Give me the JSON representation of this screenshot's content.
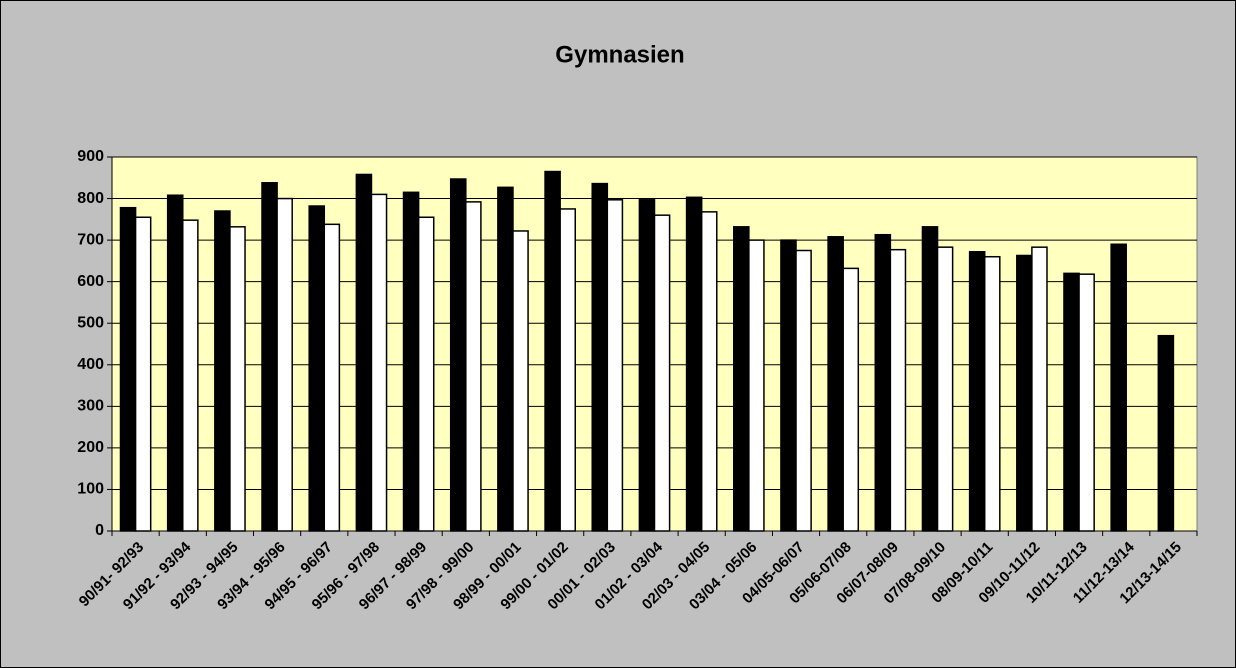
{
  "chart_data": {
    "type": "bar",
    "title": "Gymnasien",
    "categories": [
      "90/91- 92/93",
      "91/92 - 93/94",
      "92/93 - 94/95",
      "93/94 - 95/96",
      "94/95 - 96/97",
      "95/96 - 97/98",
      "96/97 - 98/99",
      "97/98 - 99/00",
      "98/99 - 00/01",
      "99/00 - 01/02",
      "00/01 - 02/03",
      "01/02 - 03/04",
      "02/03 - 04/05",
      "03/04 - 05/06",
      "04/05-06/07",
      "05/06-07/08",
      "06/07-08/09",
      "07/08-09/10",
      "08/09-10/11",
      "09/10-11/12",
      "10/11-12/13",
      "11/12-13/14",
      "12/13-14/15"
    ],
    "series": [
      {
        "color": "#000000",
        "values": [
          778,
          808,
          770,
          838,
          782,
          858,
          815,
          847,
          827,
          865,
          836,
          797,
          803,
          732,
          700,
          708,
          713,
          732,
          672,
          663,
          620,
          690,
          470
        ]
      },
      {
        "color": "#ffffff",
        "values": [
          755,
          748,
          732,
          800,
          738,
          810,
          755,
          792,
          722,
          775,
          797,
          760,
          768,
          700,
          675,
          632,
          677,
          683,
          660,
          683,
          618,
          null,
          null
        ]
      }
    ],
    "ylim": [
      0,
      900
    ],
    "yticks": [
      0,
      100,
      200,
      300,
      400,
      500,
      600,
      700,
      800,
      900
    ],
    "grid": true
  }
}
